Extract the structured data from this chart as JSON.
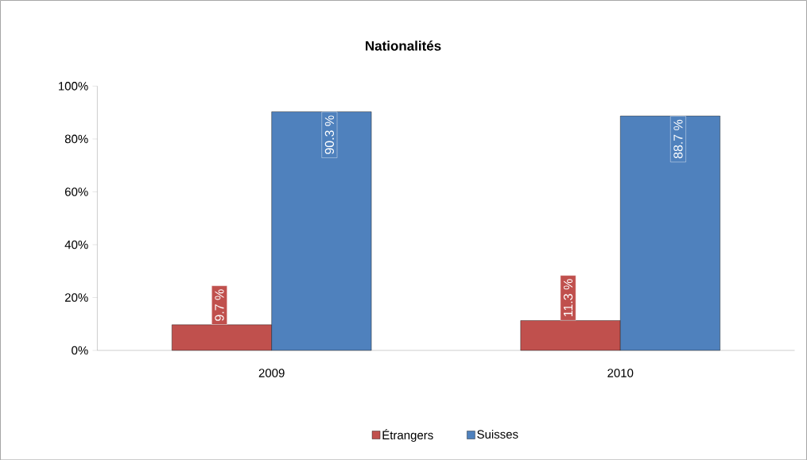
{
  "chart_data": {
    "type": "bar",
    "title": "Nationalités",
    "categories": [
      "2009",
      "2010"
    ],
    "series": [
      {
        "name": "Étrangers",
        "color": "#c0504d",
        "values": [
          9.7,
          11.3
        ],
        "value_labels": [
          "9.7 %",
          "11.3 %"
        ]
      },
      {
        "name": "Suisses",
        "color": "#4f81bd",
        "values": [
          90.3,
          88.7
        ],
        "value_labels": [
          "90.3 %",
          "88.7 %"
        ]
      }
    ],
    "ylim": [
      0,
      100
    ],
    "yticks": [
      {
        "value": 0,
        "label": "0%"
      },
      {
        "value": 20,
        "label": "20%"
      },
      {
        "value": 40,
        "label": "40%"
      },
      {
        "value": 60,
        "label": "60%"
      },
      {
        "value": 80,
        "label": "80%"
      },
      {
        "value": 100,
        "label": "100%"
      }
    ],
    "grid": false,
    "legend": "bottom"
  }
}
